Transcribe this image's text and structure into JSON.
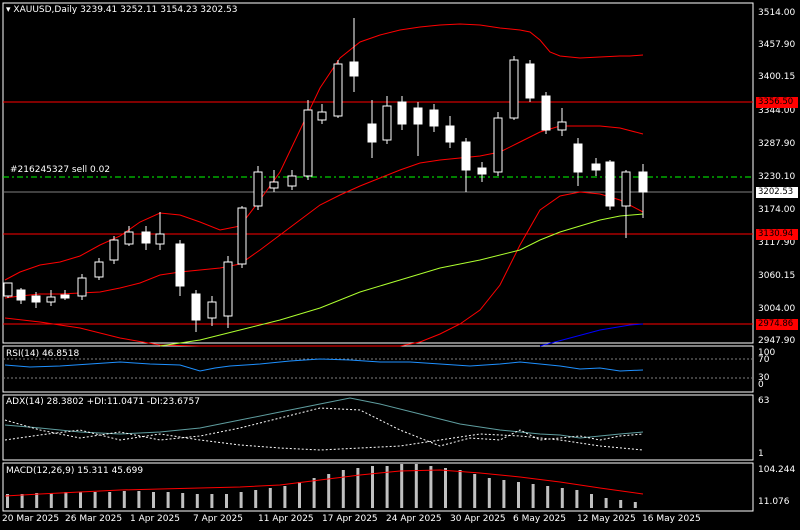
{
  "title": "XAUUSD,Daily",
  "ohlc": "3239.41 3252.11 3154.23 3202.53",
  "trade_label": "#216245327 sell 0.02",
  "price_axis": [
    "3514.00",
    "3457.90",
    "3400.15",
    "3344.00",
    "3287.90",
    "3230.10",
    "3174.00",
    "3117.90",
    "3060.15",
    "3004.00",
    "2947.90"
  ],
  "price_tags": {
    "upper": {
      "value": "3356.50",
      "color": "#ff0000"
    },
    "current": {
      "value": "3202.53",
      "color": "#000000"
    },
    "mid": {
      "value": "3130.94",
      "color": "#ff0000"
    },
    "lower": {
      "value": "2974.86",
      "color": "#ff0000"
    }
  },
  "rsi": {
    "label": "RSI(14) 46.8518",
    "axis": [
      "100",
      "70",
      "30",
      "0"
    ]
  },
  "adx": {
    "label": "ADX(14) 28.3802 +DI:11.0471 -DI:23.6757",
    "axis": [
      "63",
      "1"
    ]
  },
  "macd": {
    "label": "MACD(12,26,9) 15.311 45.699",
    "axis": [
      "104.244",
      "11.076"
    ]
  },
  "dates": [
    "20 Mar 2025",
    "26 Mar 2025",
    "1 Apr 2025",
    "7 Apr 2025",
    "11 Apr 2025",
    "17 Apr 2025",
    "24 Apr 2025",
    "30 Apr 2025",
    "6 May 2025",
    "12 May 2025",
    "16 May 2025"
  ],
  "colors": {
    "bull": "#ffffff",
    "bear": "#ffffff",
    "bollinger": "#ff0000",
    "ma_long": "#adff2f",
    "ma_blue": "#0000ff",
    "rsi_line": "#1e90ff",
    "adx_main": "#5f9ea0",
    "macd_bar": "#c0c0c0",
    "macd_signal": "#ff0000"
  }
}
